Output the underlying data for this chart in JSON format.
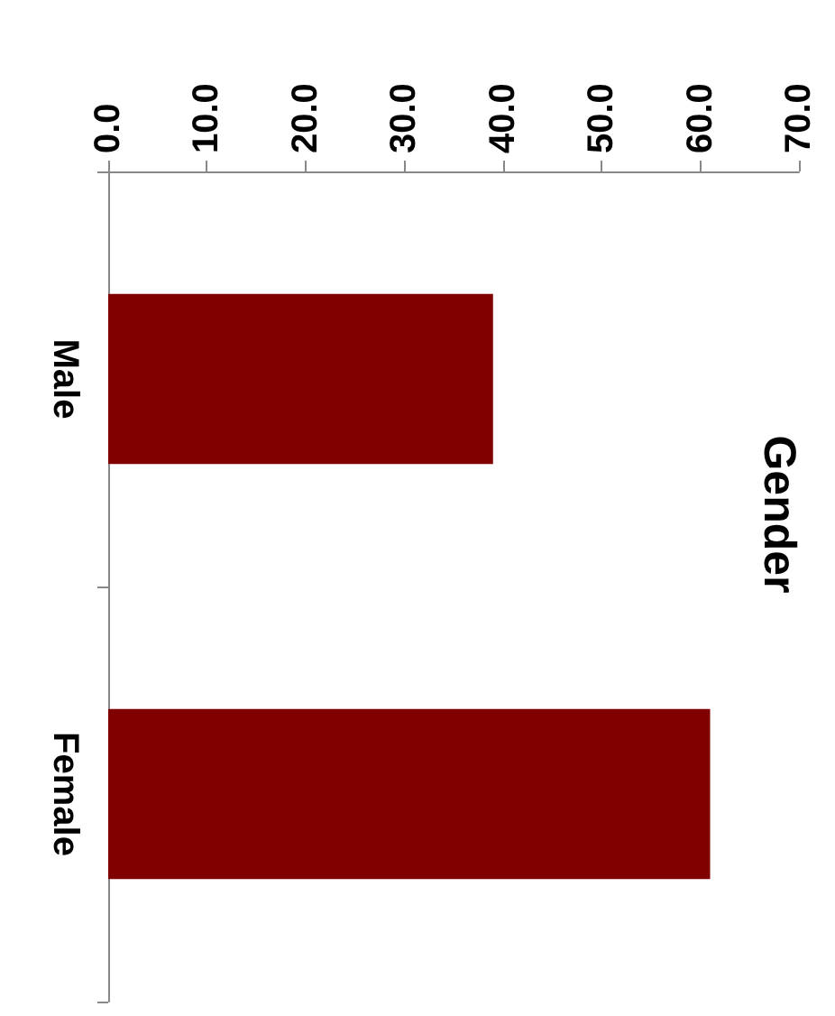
{
  "chart_data": {
    "type": "bar",
    "orientation": "horizontal",
    "title": "Gender",
    "categories": [
      "Male",
      "Female"
    ],
    "values": [
      39,
      61
    ],
    "color": "#800000",
    "xlim": [
      0,
      70
    ],
    "xticks": [
      {
        "value": 0,
        "label": "0.0"
      },
      {
        "value": 10,
        "label": "10.0"
      },
      {
        "value": 20,
        "label": "20.0"
      },
      {
        "value": 30,
        "label": "30.0"
      },
      {
        "value": 40,
        "label": "40.0"
      },
      {
        "value": 50,
        "label": "50.0"
      },
      {
        "value": 60,
        "label": "60.0"
      },
      {
        "value": 70,
        "label": "70.0"
      }
    ],
    "grid": false
  }
}
